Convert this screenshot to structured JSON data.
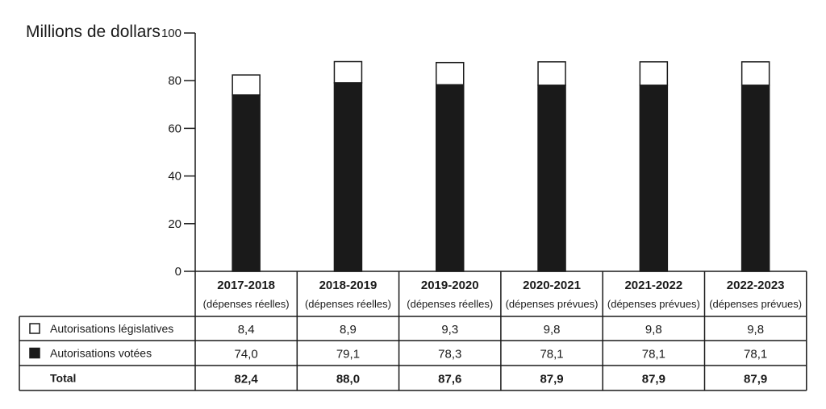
{
  "chart_data": {
    "type": "bar",
    "stacked": true,
    "ylabel": "Millions de dollars",
    "ylim": [
      0,
      100
    ],
    "yticks": [
      0,
      20,
      40,
      60,
      80,
      100
    ],
    "categories": [
      {
        "year": "2017-2018",
        "note": "(dépenses réelles)"
      },
      {
        "year": "2018-2019",
        "note": "(dépenses réelles)"
      },
      {
        "year": "2019-2020",
        "note": "(dépenses réelles)"
      },
      {
        "year": "2020-2021",
        "note": "(dépenses prévues)"
      },
      {
        "year": "2021-2022",
        "note": "(dépenses prévues)"
      },
      {
        "year": "2022-2023",
        "note": "(dépenses prévues)"
      }
    ],
    "series": [
      {
        "name": "Autorisations votées",
        "color": "#1a1a1a",
        "values": [
          74.0,
          79.1,
          78.3,
          78.1,
          78.1,
          78.1
        ],
        "labels": [
          "74,0",
          "79,1",
          "78,3",
          "78,1",
          "78,1",
          "78,1"
        ]
      },
      {
        "name": "Autorisations législatives",
        "color": "#ffffff",
        "values": [
          8.4,
          8.9,
          9.3,
          9.8,
          9.8,
          9.8
        ],
        "labels": [
          "8,4",
          "8,9",
          "9,3",
          "9,8",
          "9,8",
          "9,8"
        ]
      }
    ],
    "total": {
      "name": "Total",
      "values": [
        82.4,
        88.0,
        87.6,
        87.9,
        87.9,
        87.9
      ],
      "labels": [
        "82,4",
        "88,0",
        "87,6",
        "87,9",
        "87,9",
        "87,9"
      ]
    },
    "table_rows": [
      "Autorisations législatives",
      "Autorisations votées",
      "Total"
    ],
    "grid": false
  }
}
